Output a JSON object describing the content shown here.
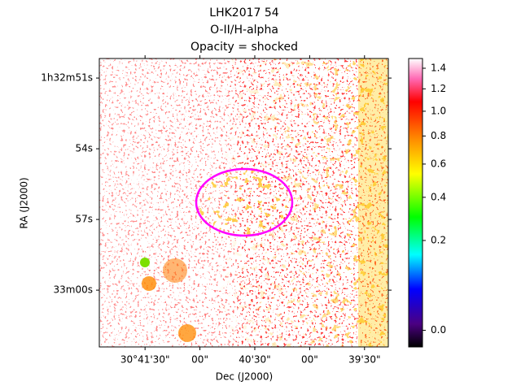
{
  "chart_data": {
    "type": "image",
    "title": [
      "LHK2017 54",
      "O-II/H-alpha",
      "Opacity = shocked"
    ],
    "xlabel": "Dec (J2000)",
    "ylabel": "RA (J2000)",
    "xlim": [
      110515,
      110357
    ],
    "xticks": [
      {
        "value": 110490,
        "label": "30°41'30\""
      },
      {
        "value": 110460,
        "label": "00\""
      },
      {
        "value": 110430,
        "label": "40'30\""
      },
      {
        "value": 110400,
        "label": "00\""
      },
      {
        "value": 110370,
        "label": "39'30\""
      }
    ],
    "ylim": [
      5582.41,
      5570.17
    ],
    "yticks": [
      {
        "value": 5571,
        "label": "1h32m51s"
      },
      {
        "value": 5574,
        "label": "54s"
      },
      {
        "value": 5577,
        "label": "57s"
      },
      {
        "value": 5580,
        "label": "33m00s"
      }
    ],
    "colorbar": {
      "clim": [
        -0.005,
        1.5
      ],
      "stretch": "sqrt",
      "ticks": [
        {
          "value": 0,
          "label": "0.0"
        },
        0.2,
        0.4,
        0.6,
        0.8,
        {
          "value": 1,
          "label": "1.0"
        },
        1.2,
        1.4
      ]
    }
  }
}
